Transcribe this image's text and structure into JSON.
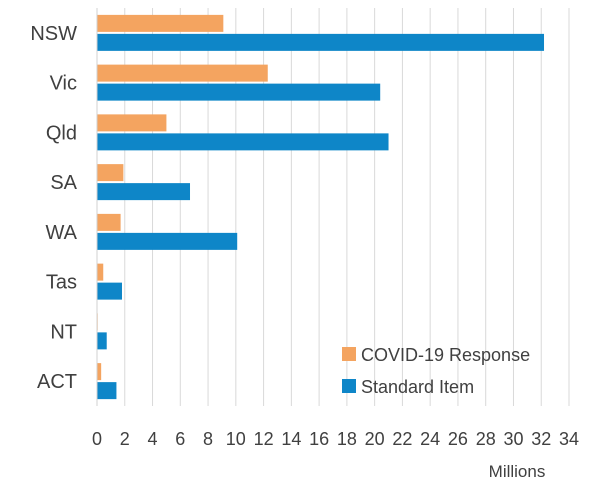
{
  "chart_data": {
    "type": "bar",
    "orientation": "horizontal",
    "categories": [
      "NSW",
      "Vic",
      "Qld",
      "SA",
      "WA",
      "Tas",
      "NT",
      "ACT"
    ],
    "series": [
      {
        "name": "COVID-19 Response",
        "color": "#F4A460",
        "values": [
          9.1,
          12.3,
          5.0,
          1.9,
          1.7,
          0.45,
          0.05,
          0.3
        ]
      },
      {
        "name": "Standard Item",
        "color": "#0E86C8",
        "values": [
          32.2,
          20.4,
          21.0,
          6.7,
          10.1,
          1.8,
          0.7,
          1.4
        ]
      }
    ],
    "xticks": [
      "0",
      "2",
      "4",
      "6",
      "8",
      "10",
      "12",
      "14",
      "16",
      "18",
      "20",
      "22",
      "24",
      "26",
      "28",
      "30",
      "32",
      "34"
    ],
    "xlim": [
      0,
      34
    ],
    "xunit": "Millions",
    "grid": "vertical",
    "legend": "bottom-right"
  }
}
